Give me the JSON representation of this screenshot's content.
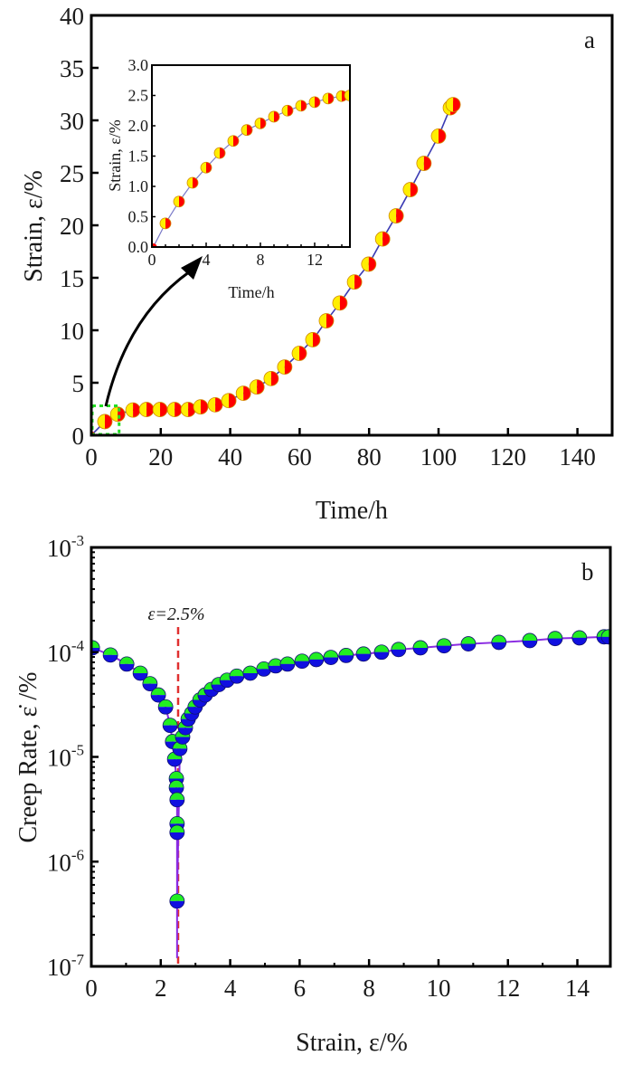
{
  "chart_data": [
    {
      "id": "a",
      "type": "line",
      "panel_label": "a",
      "title": "",
      "xlabel": "Time/h",
      "ylabel": "Strain, ε/%",
      "xlim": [
        0,
        150
      ],
      "ylim": [
        0,
        40
      ],
      "xticks": [
        0,
        20,
        40,
        60,
        80,
        100,
        120,
        140
      ],
      "yticks": [
        0,
        5,
        10,
        15,
        20,
        25,
        30,
        35,
        40
      ],
      "grid": false,
      "marker_colors": {
        "left": "#ffee00",
        "right": "#ff0000",
        "edge": "#d08a00"
      },
      "line_color": "#3b3bb3",
      "series": [
        {
          "name": "Strain vs Time",
          "x": [
            0,
            3.9,
            7.6,
            12,
            15.9,
            19.8,
            24,
            27.9,
            31.5,
            35.7,
            39.6,
            43.8,
            47.7,
            51.8,
            55.7,
            59.9,
            63.8,
            67.7,
            71.6,
            75.8,
            79.9,
            83.9,
            87.8,
            91.9,
            95.8,
            100,
            103.4,
            104.2
          ],
          "y": [
            0,
            1.3,
            2.0,
            2.4,
            2.45,
            2.45,
            2.45,
            2.45,
            2.7,
            2.9,
            3.3,
            4.0,
            4.6,
            5.4,
            6.5,
            7.8,
            9.1,
            10.9,
            12.6,
            14.6,
            16.3,
            18.7,
            20.9,
            23.4,
            25.9,
            28.5,
            31.2,
            31.5
          ]
        }
      ],
      "annotations": [
        {
          "type": "dashed-box",
          "color": "#22dd22",
          "x_range": [
            0,
            8
          ],
          "y_range": [
            0,
            2.8
          ],
          "note": "zoom region shown in inset"
        },
        {
          "type": "arrow",
          "from": "dashed-box",
          "to": "inset"
        }
      ],
      "inset": {
        "type": "line",
        "xlabel": "Time/h",
        "ylabel": "Strain, ε/%",
        "xlim": [
          0,
          14.6
        ],
        "ylim": [
          0,
          3.0
        ],
        "xticks": [
          0,
          4,
          8,
          12
        ],
        "yticks": [
          "0.0",
          "0.5",
          "1.0",
          "1.5",
          "2.0",
          "2.5",
          "3.0"
        ],
        "series": [
          {
            "name": "Strain (first 15 h)",
            "x": [
              0.1,
              1,
              2,
              3,
              4,
              5,
              6,
              7,
              8,
              9,
              10,
              11,
              12,
              13,
              14,
              14.6
            ],
            "y": [
              0.0,
              0.39,
              0.75,
              1.06,
              1.31,
              1.55,
              1.75,
              1.93,
              2.04,
              2.15,
              2.25,
              2.33,
              2.39,
              2.45,
              2.49,
              2.5
            ]
          }
        ]
      }
    },
    {
      "id": "b",
      "type": "line",
      "panel_label": "b",
      "title": "",
      "xlabel": "Strain, ε/%",
      "ylabel": "Creep Rate, ε̇ /%",
      "xscale": "linear",
      "yscale": "log",
      "xlim": [
        0,
        14.95
      ],
      "ylim": [
        1e-07,
        0.001
      ],
      "xticks": [
        0,
        2,
        4,
        6,
        8,
        10,
        12,
        14
      ],
      "yticks": [
        {
          "base": "10",
          "exp": "-7"
        },
        {
          "base": "10",
          "exp": "-6"
        },
        {
          "base": "10",
          "exp": "-5"
        },
        {
          "base": "10",
          "exp": "-4"
        },
        {
          "base": "10",
          "exp": "-3"
        }
      ],
      "grid": false,
      "marker_colors": {
        "top": "#22ee22",
        "bottom": "#1010e0",
        "edge": "#101070"
      },
      "line_color": "#8a2be2",
      "reference_line": {
        "x": 2.5,
        "label": "ε=2.5%",
        "color": "#e03030",
        "style": "dashed"
      },
      "series": [
        {
          "name": "Creep rate",
          "x": [
            0.03,
            0.55,
            1.02,
            1.41,
            1.69,
            1.93,
            2.14,
            2.27,
            2.34,
            2.4,
            2.45,
            2.45,
            2.47,
            2.47,
            2.47,
            2.47,
            2.47,
            2.55,
            2.63,
            2.71,
            2.79,
            2.89,
            2.99,
            3.13,
            3.28,
            3.46,
            3.67,
            3.91,
            4.19,
            4.58,
            4.97,
            5.31,
            5.65,
            6.07,
            6.48,
            6.9,
            7.34,
            7.84,
            8.36,
            8.85,
            9.48,
            10.16,
            10.86,
            11.74,
            12.63,
            13.36,
            14.06,
            14.77,
            14.9
          ],
          "y": [
            0.00011,
            9.4e-05,
            7.7e-05,
            6.3e-05,
            5e-05,
            3.9e-05,
            3e-05,
            2e-05,
            1.4e-05,
            9.5e-06,
            6.2e-06,
            5.1e-06,
            3.9e-06,
            2.3e-06,
            1.9e-06,
            4.2e-07,
            1.2e-07,
            1.2e-05,
            1.55e-05,
            1.9e-05,
            2.3e-05,
            2.6e-05,
            3e-05,
            3.5e-05,
            3.9e-05,
            4.4e-05,
            4.9e-05,
            5.4e-05,
            5.9e-05,
            6.3e-05,
            6.9e-05,
            7.4e-05,
            7.7e-05,
            8.2e-05,
            8.5e-05,
            8.9e-05,
            9.3e-05,
            9.6e-05,
            0.0001,
            0.000106,
            0.00011,
            0.000115,
            0.00012,
            0.000124,
            0.000129,
            0.000135,
            0.000137,
            0.00014,
            0.00014
          ],
          "markers_skip_index": [
            16
          ]
        }
      ]
    }
  ]
}
